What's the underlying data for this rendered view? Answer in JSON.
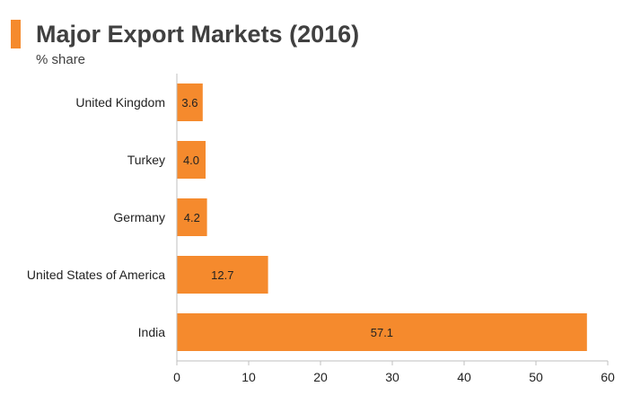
{
  "header": {
    "title": "Major Export Markets (2016)",
    "subtitle": "% share"
  },
  "colors": {
    "accent": "#f58a2d",
    "bar": "#f58a2d",
    "axis": "#bfbfbf",
    "text": "#222222"
  },
  "chart_data": {
    "type": "bar",
    "orientation": "horizontal",
    "title": "Major Export Markets (2016)",
    "subtitle": "% share",
    "categories": [
      "United Kingdom",
      "Turkey",
      "Germany",
      "United States of America",
      "India"
    ],
    "values": [
      3.6,
      4.0,
      4.2,
      12.7,
      57.1
    ],
    "data_labels": [
      "3.6",
      "4.0",
      "4.2",
      "12.7",
      "57.1"
    ],
    "xlim": [
      0,
      60
    ],
    "x_ticks": [
      0,
      10,
      20,
      30,
      40,
      50,
      60
    ],
    "grid": false,
    "legend": "none"
  }
}
